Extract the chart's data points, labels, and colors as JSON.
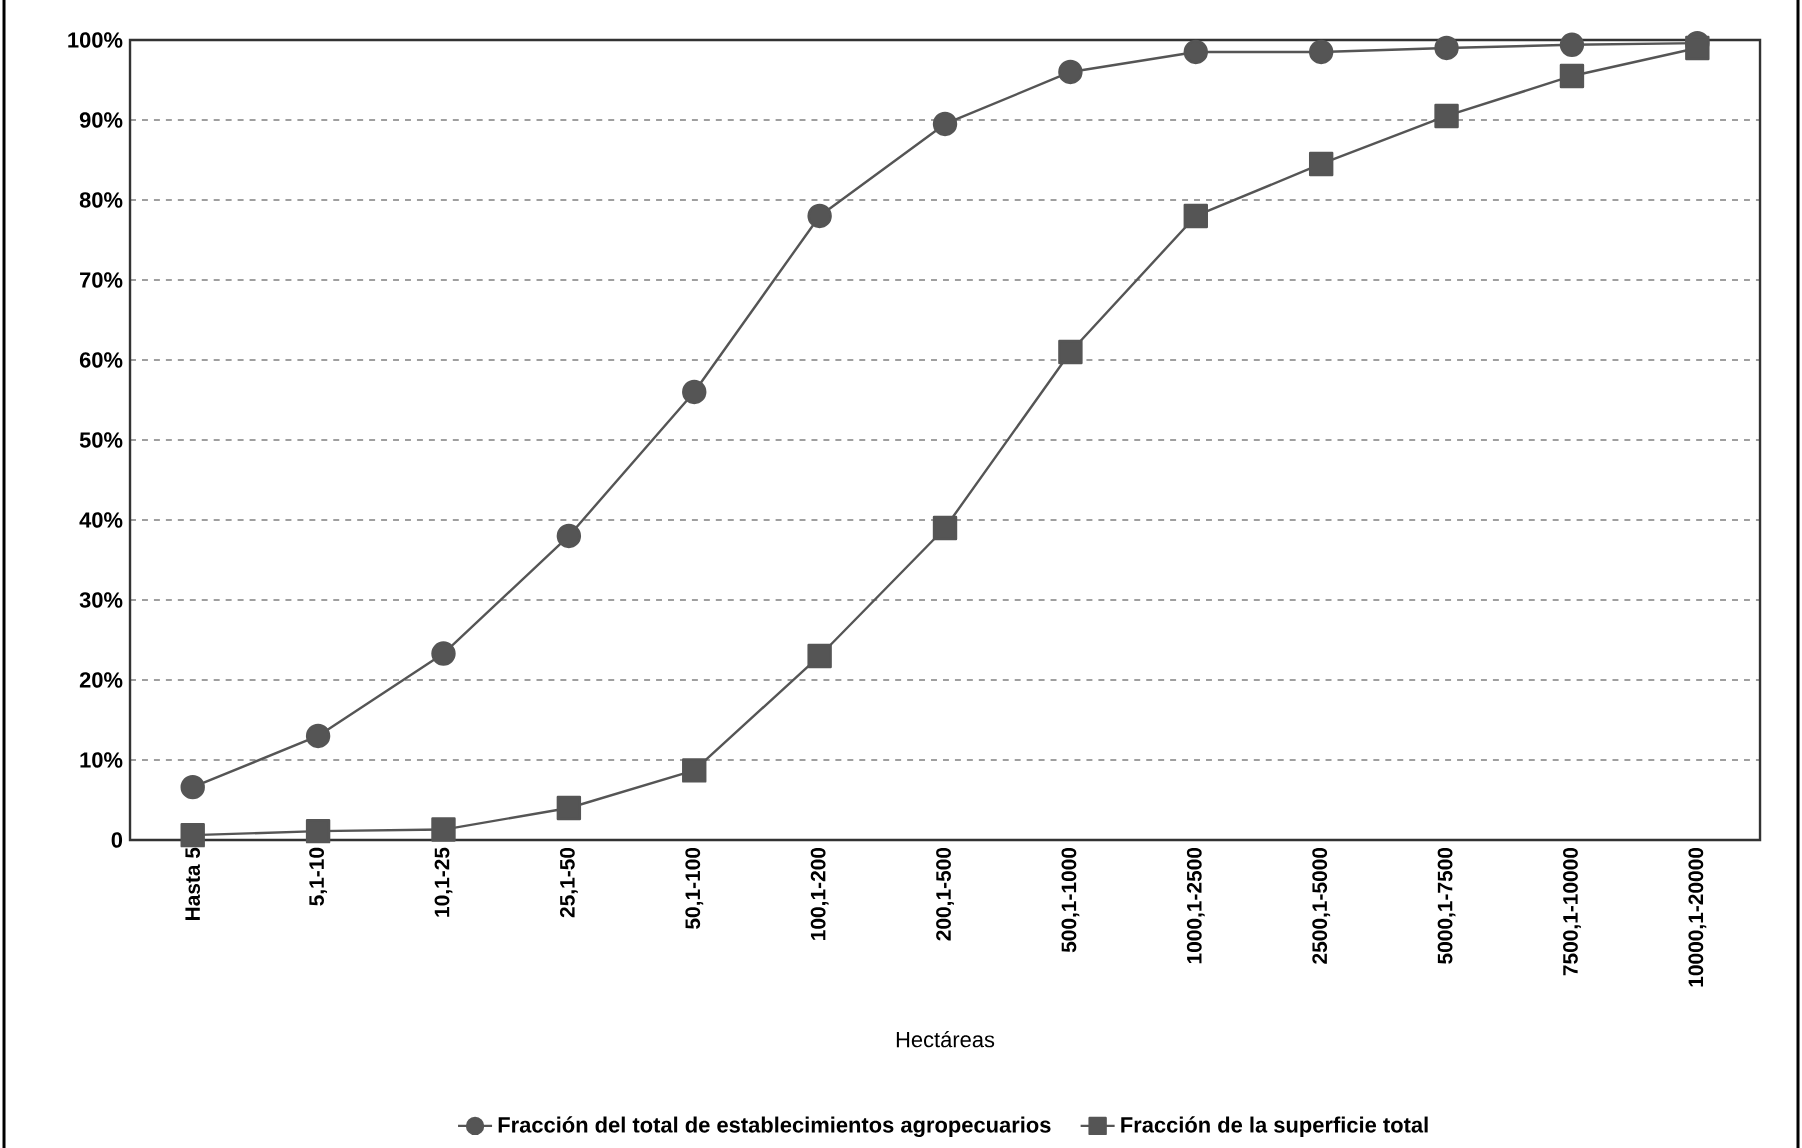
{
  "chart_data": {
    "type": "line",
    "xlabel": "Hectáreas",
    "categories": [
      "Hasta 5",
      "5,1-10",
      "10,1-25",
      "25,1-50",
      "50,1-100",
      "100,1-200",
      "200,1-500",
      "500,1-1000",
      "1000,1-2500",
      "2500,1-5000",
      "5000,1-7500",
      "7500,1-10000",
      "10000,1-20000"
    ],
    "series": [
      {
        "name": "Fracción del total de establecimientos agropecuarios",
        "color": "#555555",
        "marker": "circle",
        "values": [
          6.6,
          13,
          23.3,
          38,
          56,
          78,
          89.5,
          96,
          98.5,
          98.5,
          99,
          99.4,
          99.6
        ]
      },
      {
        "name": "Fracción de la superficie total",
        "color": "#555555",
        "marker": "square",
        "values": [
          0.6,
          1.1,
          1.3,
          4,
          8.7,
          23,
          39,
          61,
          78,
          84.5,
          90.5,
          95.5,
          99
        ]
      }
    ],
    "ylim": [
      0,
      100
    ],
    "yticks": [
      {
        "value": 0,
        "label": "0"
      },
      {
        "value": 10,
        "label": "10%"
      },
      {
        "value": 20,
        "label": "20%"
      },
      {
        "value": 30,
        "label": "30%"
      },
      {
        "value": 40,
        "label": "40%"
      },
      {
        "value": 50,
        "label": "50%"
      },
      {
        "value": 60,
        "label": "60%"
      },
      {
        "value": 70,
        "label": "70%"
      },
      {
        "value": 80,
        "label": "80%"
      },
      {
        "value": 90,
        "label": "90%"
      },
      {
        "value": 100,
        "label": "100%"
      }
    ],
    "grid": "y",
    "legend": "bottom",
    "line_style": "solid"
  }
}
